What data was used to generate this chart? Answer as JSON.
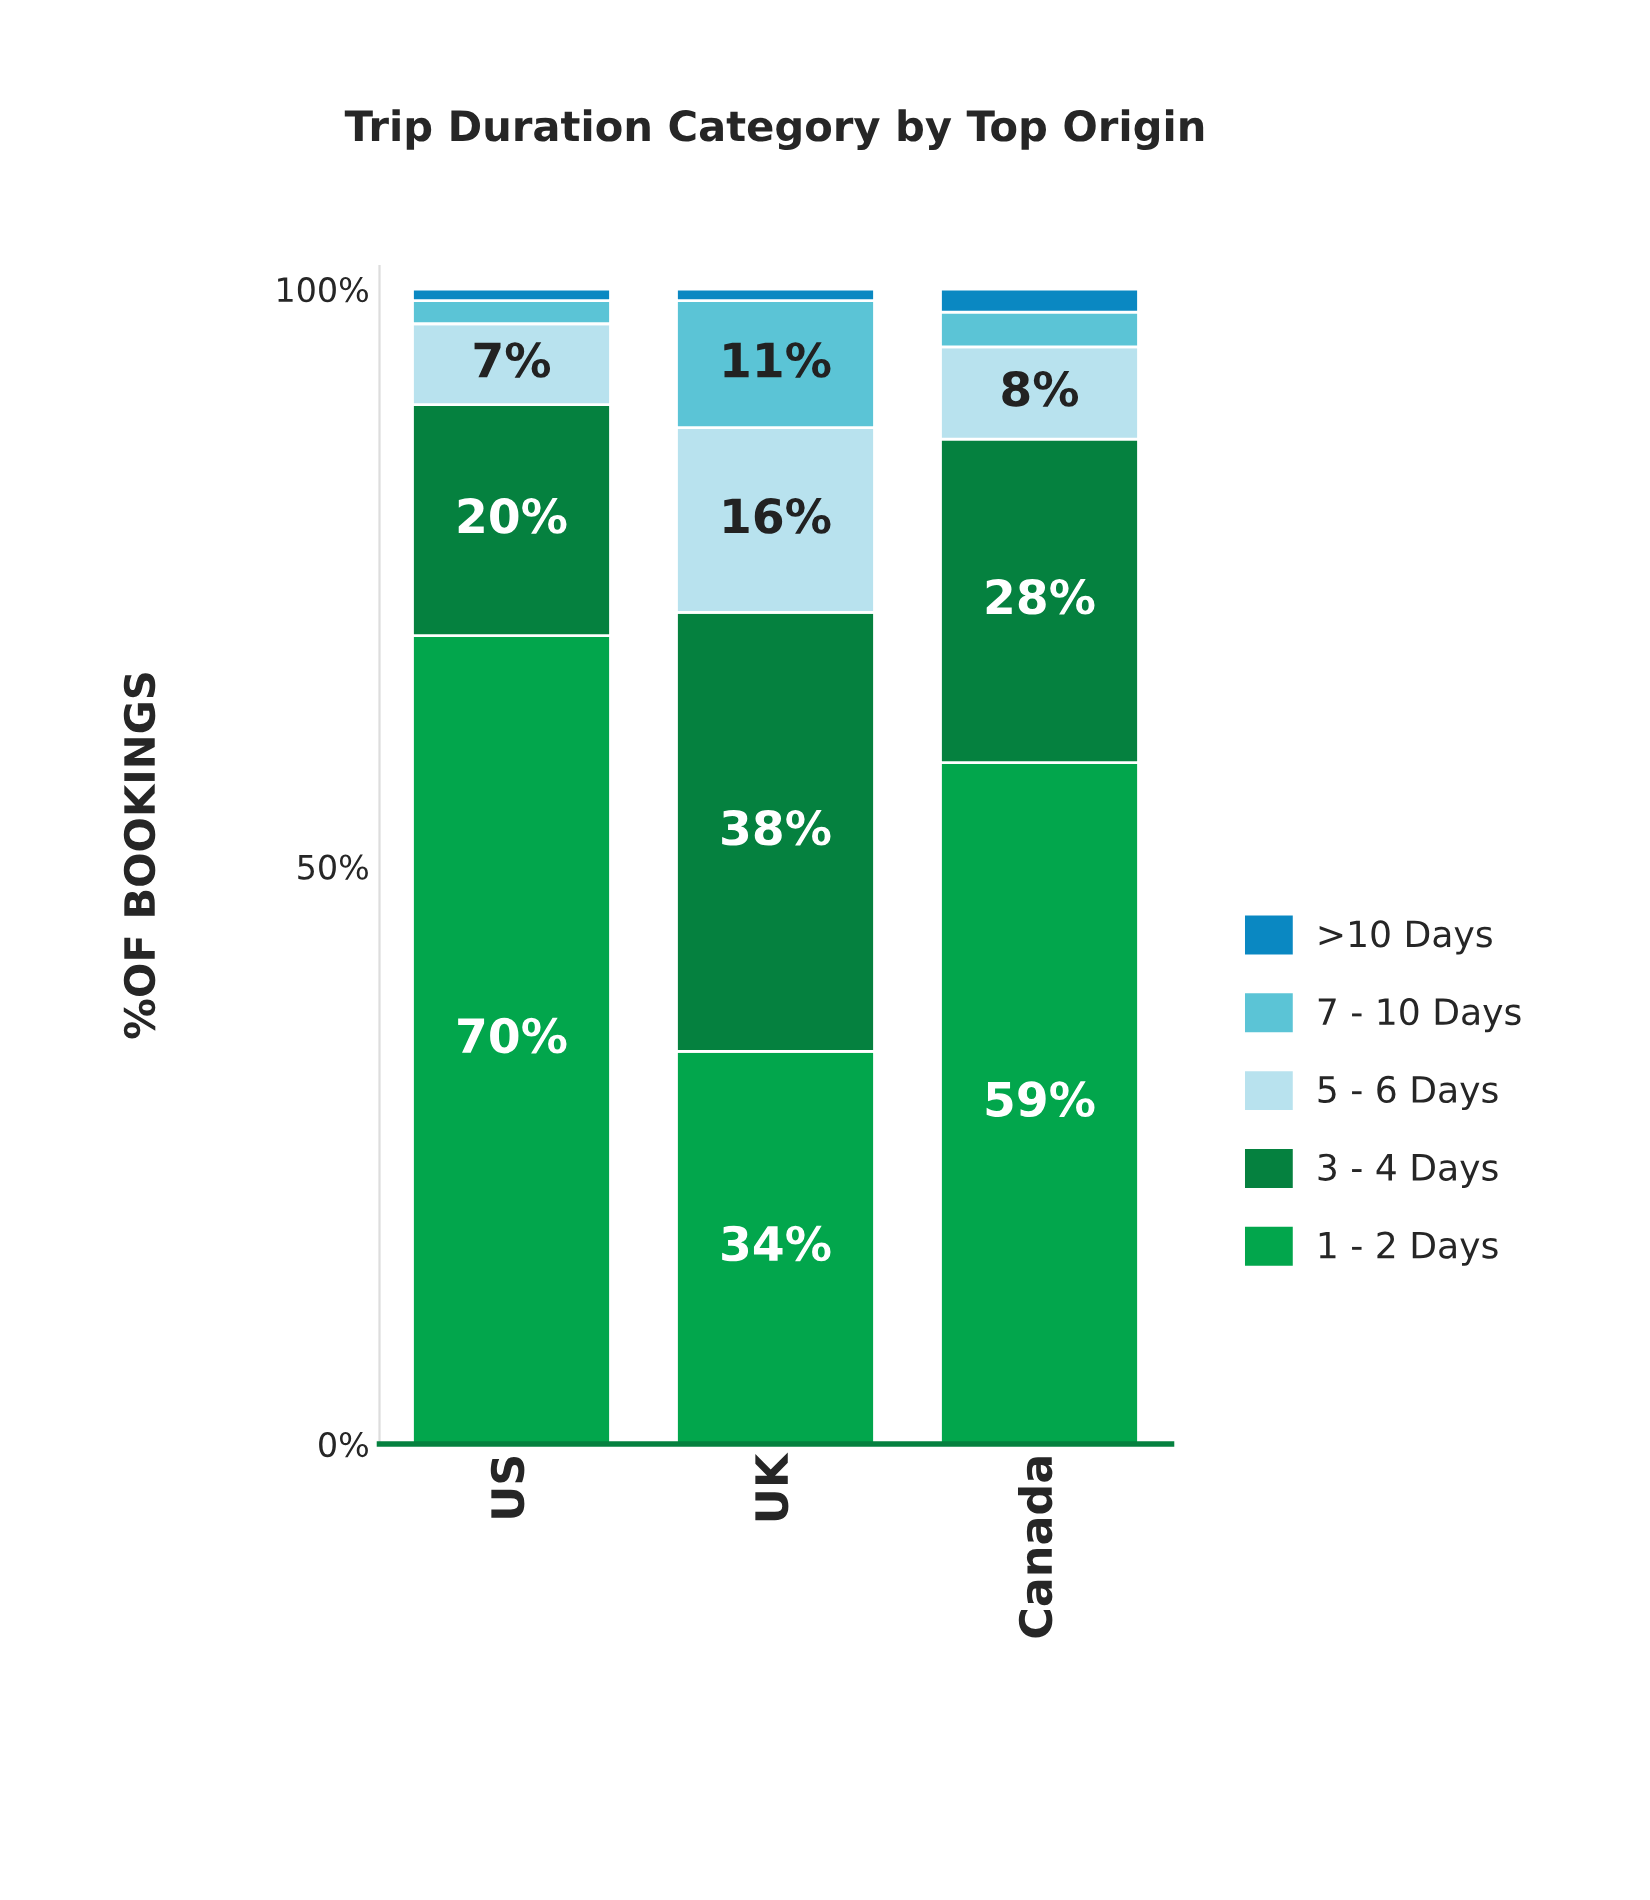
{
  "chart_data": {
    "type": "bar",
    "title": "Trip Duration Category by Top Origin",
    "ylabel": "%OF BOOKINGS",
    "categories": [
      "US",
      "UK",
      "Canada"
    ],
    "stacked": true,
    "ylim": [
      0,
      102
    ],
    "yticks": [
      {
        "value": 0,
        "label": "0%"
      },
      {
        "value": 50,
        "label": "50%"
      },
      {
        "value": 100,
        "label": "100%"
      }
    ],
    "series": [
      {
        "name": "1 - 2 Days",
        "color": "#02a64c",
        "values": [
          70,
          34,
          59
        ],
        "value_labels": [
          "70%",
          "34%",
          "59%"
        ]
      },
      {
        "name": "3 - 4 Days",
        "color": "#05813f",
        "values": [
          20,
          38,
          28
        ],
        "value_labels": [
          "20%",
          "38%",
          "28%"
        ]
      },
      {
        "name": "5 - 6 Days",
        "color": "#b8e2ee",
        "values": [
          7,
          16,
          8
        ],
        "value_labels": [
          "7%",
          "16%",
          "8%"
        ]
      },
      {
        "name": "7 - 10 Days",
        "color": "#5bc4d6",
        "values": [
          2,
          11,
          3
        ],
        "value_labels": [
          null,
          "11%",
          null
        ]
      },
      {
        "name": ">10 Days",
        "color": "#0a88c2",
        "values": [
          1,
          1,
          2
        ],
        "value_labels": [
          null,
          null,
          null
        ]
      }
    ],
    "legend": "right",
    "grid": false
  }
}
